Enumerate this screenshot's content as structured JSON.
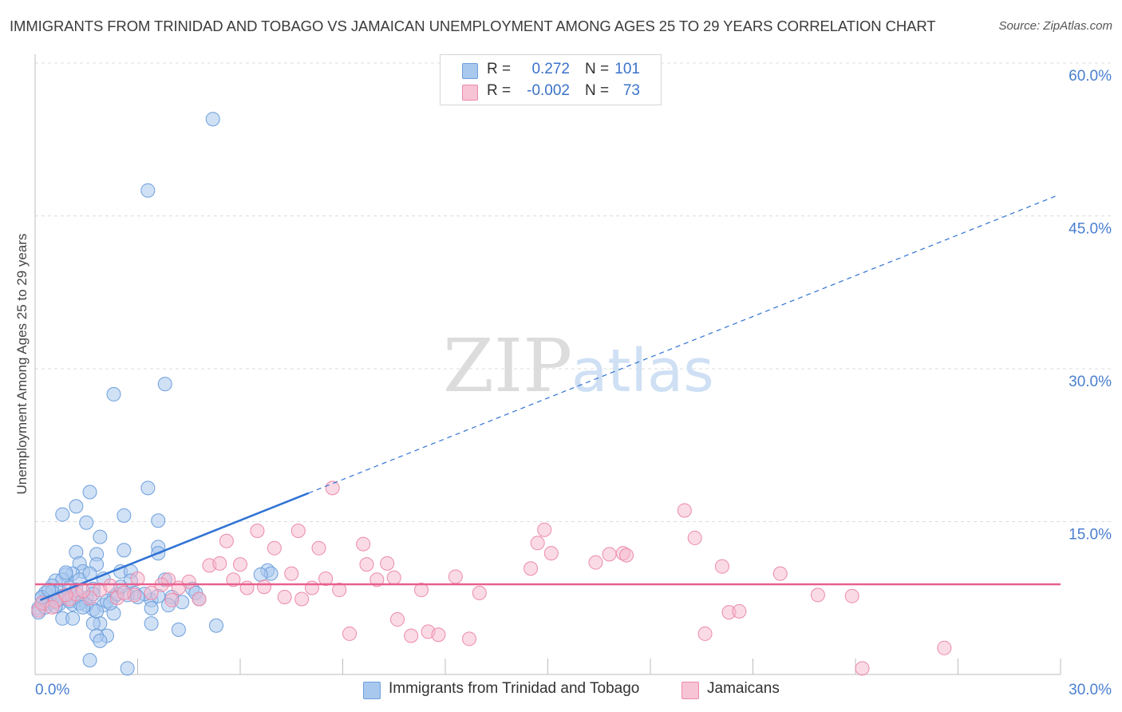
{
  "title": "IMMIGRANTS FROM TRINIDAD AND TOBAGO VS JAMAICAN UNEMPLOYMENT AMONG AGES 25 TO 29 YEARS CORRELATION CHART",
  "source": "Source: ZipAtlas.com",
  "watermark": {
    "zip": "ZIP",
    "atlas": "atlas"
  },
  "legend": {
    "r_label": "R =",
    "n_label": "N =",
    "series1": {
      "r": "0.272",
      "n": "101"
    },
    "series2": {
      "r": "-0.002",
      "n": "73"
    }
  },
  "bottom_legend": {
    "series1": "Immigrants from Trinidad and Tobago",
    "series2": "Jamaicans"
  },
  "colors": {
    "blue_fill": "#a9c8ee",
    "blue_stroke": "#6d9fdc",
    "blue_line": "#2f72d4",
    "pink_fill": "#f6b8cc",
    "pink_stroke": "#ec8aaa",
    "pink_line": "#e8608e",
    "tick_color": "#4a7fd0",
    "grid": "#dcdcdc"
  },
  "chart_data": {
    "type": "scatter",
    "title": "IMMIGRANTS FROM TRINIDAD AND TOBAGO VS JAMAICAN UNEMPLOYMENT AMONG AGES 25 TO 29 YEARS CORRELATION CHART",
    "xlabel": "",
    "ylabel": "Unemployment Among Ages 25 to 29 years",
    "xlim": [
      0,
      30
    ],
    "ylim": [
      0,
      60
    ],
    "x_tick_labels": [
      {
        "value": 0,
        "label": "0.0%"
      },
      {
        "value": 30,
        "label": "30.0%"
      }
    ],
    "y_tick_labels": [
      {
        "value": 15,
        "label": "15.0%"
      },
      {
        "value": 30,
        "label": "30.0%"
      },
      {
        "value": 45,
        "label": "45.0%"
      },
      {
        "value": 60,
        "label": "60.0%"
      }
    ],
    "series": [
      {
        "name": "Immigrants from Trinidad and Tobago",
        "color": "blue",
        "trend": {
          "solid": [
            [
              0.15,
              7.3
            ],
            [
              8.0,
              17.8
            ]
          ],
          "dashed": [
            [
              8.0,
              17.8
            ],
            [
              29.9,
              47.0
            ]
          ]
        },
        "points": [
          [
            5.2,
            54.5
          ],
          [
            3.3,
            47.5
          ],
          [
            3.8,
            28.5
          ],
          [
            2.3,
            27.5
          ],
          [
            1.6,
            17.9
          ],
          [
            3.3,
            18.3
          ],
          [
            1.2,
            16.5
          ],
          [
            0.8,
            15.7
          ],
          [
            2.6,
            15.6
          ],
          [
            1.5,
            14.9
          ],
          [
            3.6,
            15.1
          ],
          [
            1.9,
            13.5
          ],
          [
            3.6,
            12.5
          ],
          [
            2.6,
            12.2
          ],
          [
            1.2,
            12.0
          ],
          [
            1.8,
            11.8
          ],
          [
            3.6,
            11.9
          ],
          [
            1.3,
            10.9
          ],
          [
            1.8,
            10.8
          ],
          [
            2.5,
            10.1
          ],
          [
            2.8,
            10.1
          ],
          [
            1.4,
            10.1
          ],
          [
            1.1,
            9.9
          ],
          [
            0.9,
            9.8
          ],
          [
            0.6,
            9.2
          ],
          [
            6.8,
            10.2
          ],
          [
            6.9,
            9.9
          ],
          [
            6.6,
            9.8
          ],
          [
            3.8,
            9.3
          ],
          [
            2.0,
            9.4
          ],
          [
            1.3,
            9.3
          ],
          [
            0.8,
            9.3
          ],
          [
            0.5,
            8.7
          ],
          [
            1.7,
            8.4
          ],
          [
            2.9,
            8.0
          ],
          [
            4.6,
            8.4
          ],
          [
            4.7,
            8.0
          ],
          [
            0.7,
            8.2
          ],
          [
            0.3,
            8.0
          ],
          [
            1.1,
            7.8
          ],
          [
            0.2,
            7.5
          ],
          [
            0.9,
            7.5
          ],
          [
            2.7,
            7.8
          ],
          [
            1.4,
            7.3
          ],
          [
            3.4,
            7.3
          ],
          [
            4.0,
            7.6
          ],
          [
            4.8,
            7.4
          ],
          [
            3.6,
            7.7
          ],
          [
            2.3,
            7.6
          ],
          [
            0.6,
            7.1
          ],
          [
            0.2,
            7.0
          ],
          [
            0.4,
            7.0
          ],
          [
            0.7,
            6.9
          ],
          [
            1.5,
            6.8
          ],
          [
            2.0,
            6.8
          ],
          [
            3.4,
            6.5
          ],
          [
            1.7,
            6.4
          ],
          [
            0.1,
            6.5
          ],
          [
            0.1,
            6.1
          ],
          [
            2.3,
            6.0
          ],
          [
            0.8,
            5.5
          ],
          [
            1.1,
            5.5
          ],
          [
            1.9,
            5.0
          ],
          [
            3.4,
            5.0
          ],
          [
            5.3,
            4.8
          ],
          [
            1.7,
            5.0
          ],
          [
            4.2,
            4.4
          ],
          [
            2.1,
            3.8
          ],
          [
            1.8,
            3.8
          ],
          [
            1.9,
            3.3
          ],
          [
            1.6,
            1.4
          ],
          [
            2.7,
            0.6
          ],
          [
            1.0,
            8.5
          ],
          [
            0.4,
            7.2
          ],
          [
            2.1,
            7.2
          ],
          [
            3.2,
            7.9
          ],
          [
            2.2,
            7.0
          ],
          [
            1.5,
            7.5
          ],
          [
            0.3,
            6.6
          ],
          [
            1.1,
            6.9
          ],
          [
            4.3,
            7.1
          ],
          [
            2.8,
            9.2
          ],
          [
            1.6,
            9.9
          ],
          [
            0.9,
            10.0
          ],
          [
            0.5,
            8.1
          ],
          [
            1.2,
            8.3
          ],
          [
            2.4,
            7.9
          ],
          [
            0.3,
            7.3
          ],
          [
            1.3,
            7.0
          ],
          [
            0.6,
            6.7
          ],
          [
            3.0,
            7.6
          ],
          [
            1.0,
            7.2
          ],
          [
            1.8,
            6.2
          ],
          [
            0.2,
            7.6
          ],
          [
            0.8,
            7.7
          ],
          [
            1.4,
            6.6
          ],
          [
            2.5,
            8.6
          ],
          [
            3.9,
            6.8
          ],
          [
            0.4,
            8.3
          ],
          [
            1.7,
            7.9
          ],
          [
            0.7,
            7.4
          ]
        ]
      },
      {
        "name": "Jamaicans",
        "color": "pink",
        "trend": {
          "solid": [
            [
              0.0,
              8.85
            ],
            [
              30.0,
              8.85
            ]
          ]
        },
        "points": [
          [
            0.1,
            6.3
          ],
          [
            0.2,
            7.0
          ],
          [
            0.6,
            7.2
          ],
          [
            1.0,
            7.4
          ],
          [
            1.6,
            7.5
          ],
          [
            1.9,
            8.3
          ],
          [
            2.4,
            7.5
          ],
          [
            2.9,
            7.8
          ],
          [
            3.4,
            8.0
          ],
          [
            3.0,
            9.4
          ],
          [
            3.9,
            9.3
          ],
          [
            4.2,
            8.5
          ],
          [
            4.5,
            9.1
          ],
          [
            4.8,
            7.4
          ],
          [
            5.1,
            10.7
          ],
          [
            5.4,
            10.9
          ],
          [
            5.6,
            13.1
          ],
          [
            5.8,
            9.3
          ],
          [
            6.0,
            10.8
          ],
          [
            6.2,
            8.5
          ],
          [
            6.5,
            14.1
          ],
          [
            6.7,
            8.6
          ],
          [
            7.0,
            12.4
          ],
          [
            7.3,
            7.6
          ],
          [
            7.5,
            9.9
          ],
          [
            7.7,
            14.1
          ],
          [
            7.8,
            7.4
          ],
          [
            8.1,
            8.5
          ],
          [
            8.3,
            12.4
          ],
          [
            8.5,
            9.4
          ],
          [
            8.7,
            18.3
          ],
          [
            8.9,
            8.3
          ],
          [
            9.2,
            4.0
          ],
          [
            9.6,
            12.8
          ],
          [
            9.7,
            10.8
          ],
          [
            10.0,
            9.3
          ],
          [
            10.3,
            10.9
          ],
          [
            10.5,
            9.5
          ],
          [
            10.6,
            5.4
          ],
          [
            11.0,
            3.8
          ],
          [
            11.3,
            8.3
          ],
          [
            11.5,
            4.2
          ],
          [
            11.8,
            3.9
          ],
          [
            12.3,
            9.6
          ],
          [
            12.7,
            3.5
          ],
          [
            13.0,
            8.0
          ],
          [
            14.5,
            10.4
          ],
          [
            14.7,
            12.9
          ],
          [
            14.9,
            14.2
          ],
          [
            15.1,
            11.9
          ],
          [
            16.4,
            11.0
          ],
          [
            16.8,
            11.8
          ],
          [
            17.2,
            11.9
          ],
          [
            17.3,
            11.7
          ],
          [
            19.0,
            16.1
          ],
          [
            19.3,
            13.4
          ],
          [
            19.6,
            4.0
          ],
          [
            20.1,
            10.6
          ],
          [
            20.3,
            6.1
          ],
          [
            20.6,
            6.2
          ],
          [
            21.8,
            9.9
          ],
          [
            22.9,
            7.8
          ],
          [
            23.9,
            7.7
          ],
          [
            24.2,
            0.6
          ],
          [
            26.6,
            2.6
          ],
          [
            1.2,
            7.9
          ],
          [
            2.2,
            8.7
          ],
          [
            3.7,
            8.8
          ],
          [
            0.5,
            6.6
          ],
          [
            1.4,
            8.2
          ],
          [
            4.0,
            7.3
          ],
          [
            2.6,
            8.0
          ],
          [
            0.9,
            7.8
          ]
        ]
      }
    ]
  }
}
